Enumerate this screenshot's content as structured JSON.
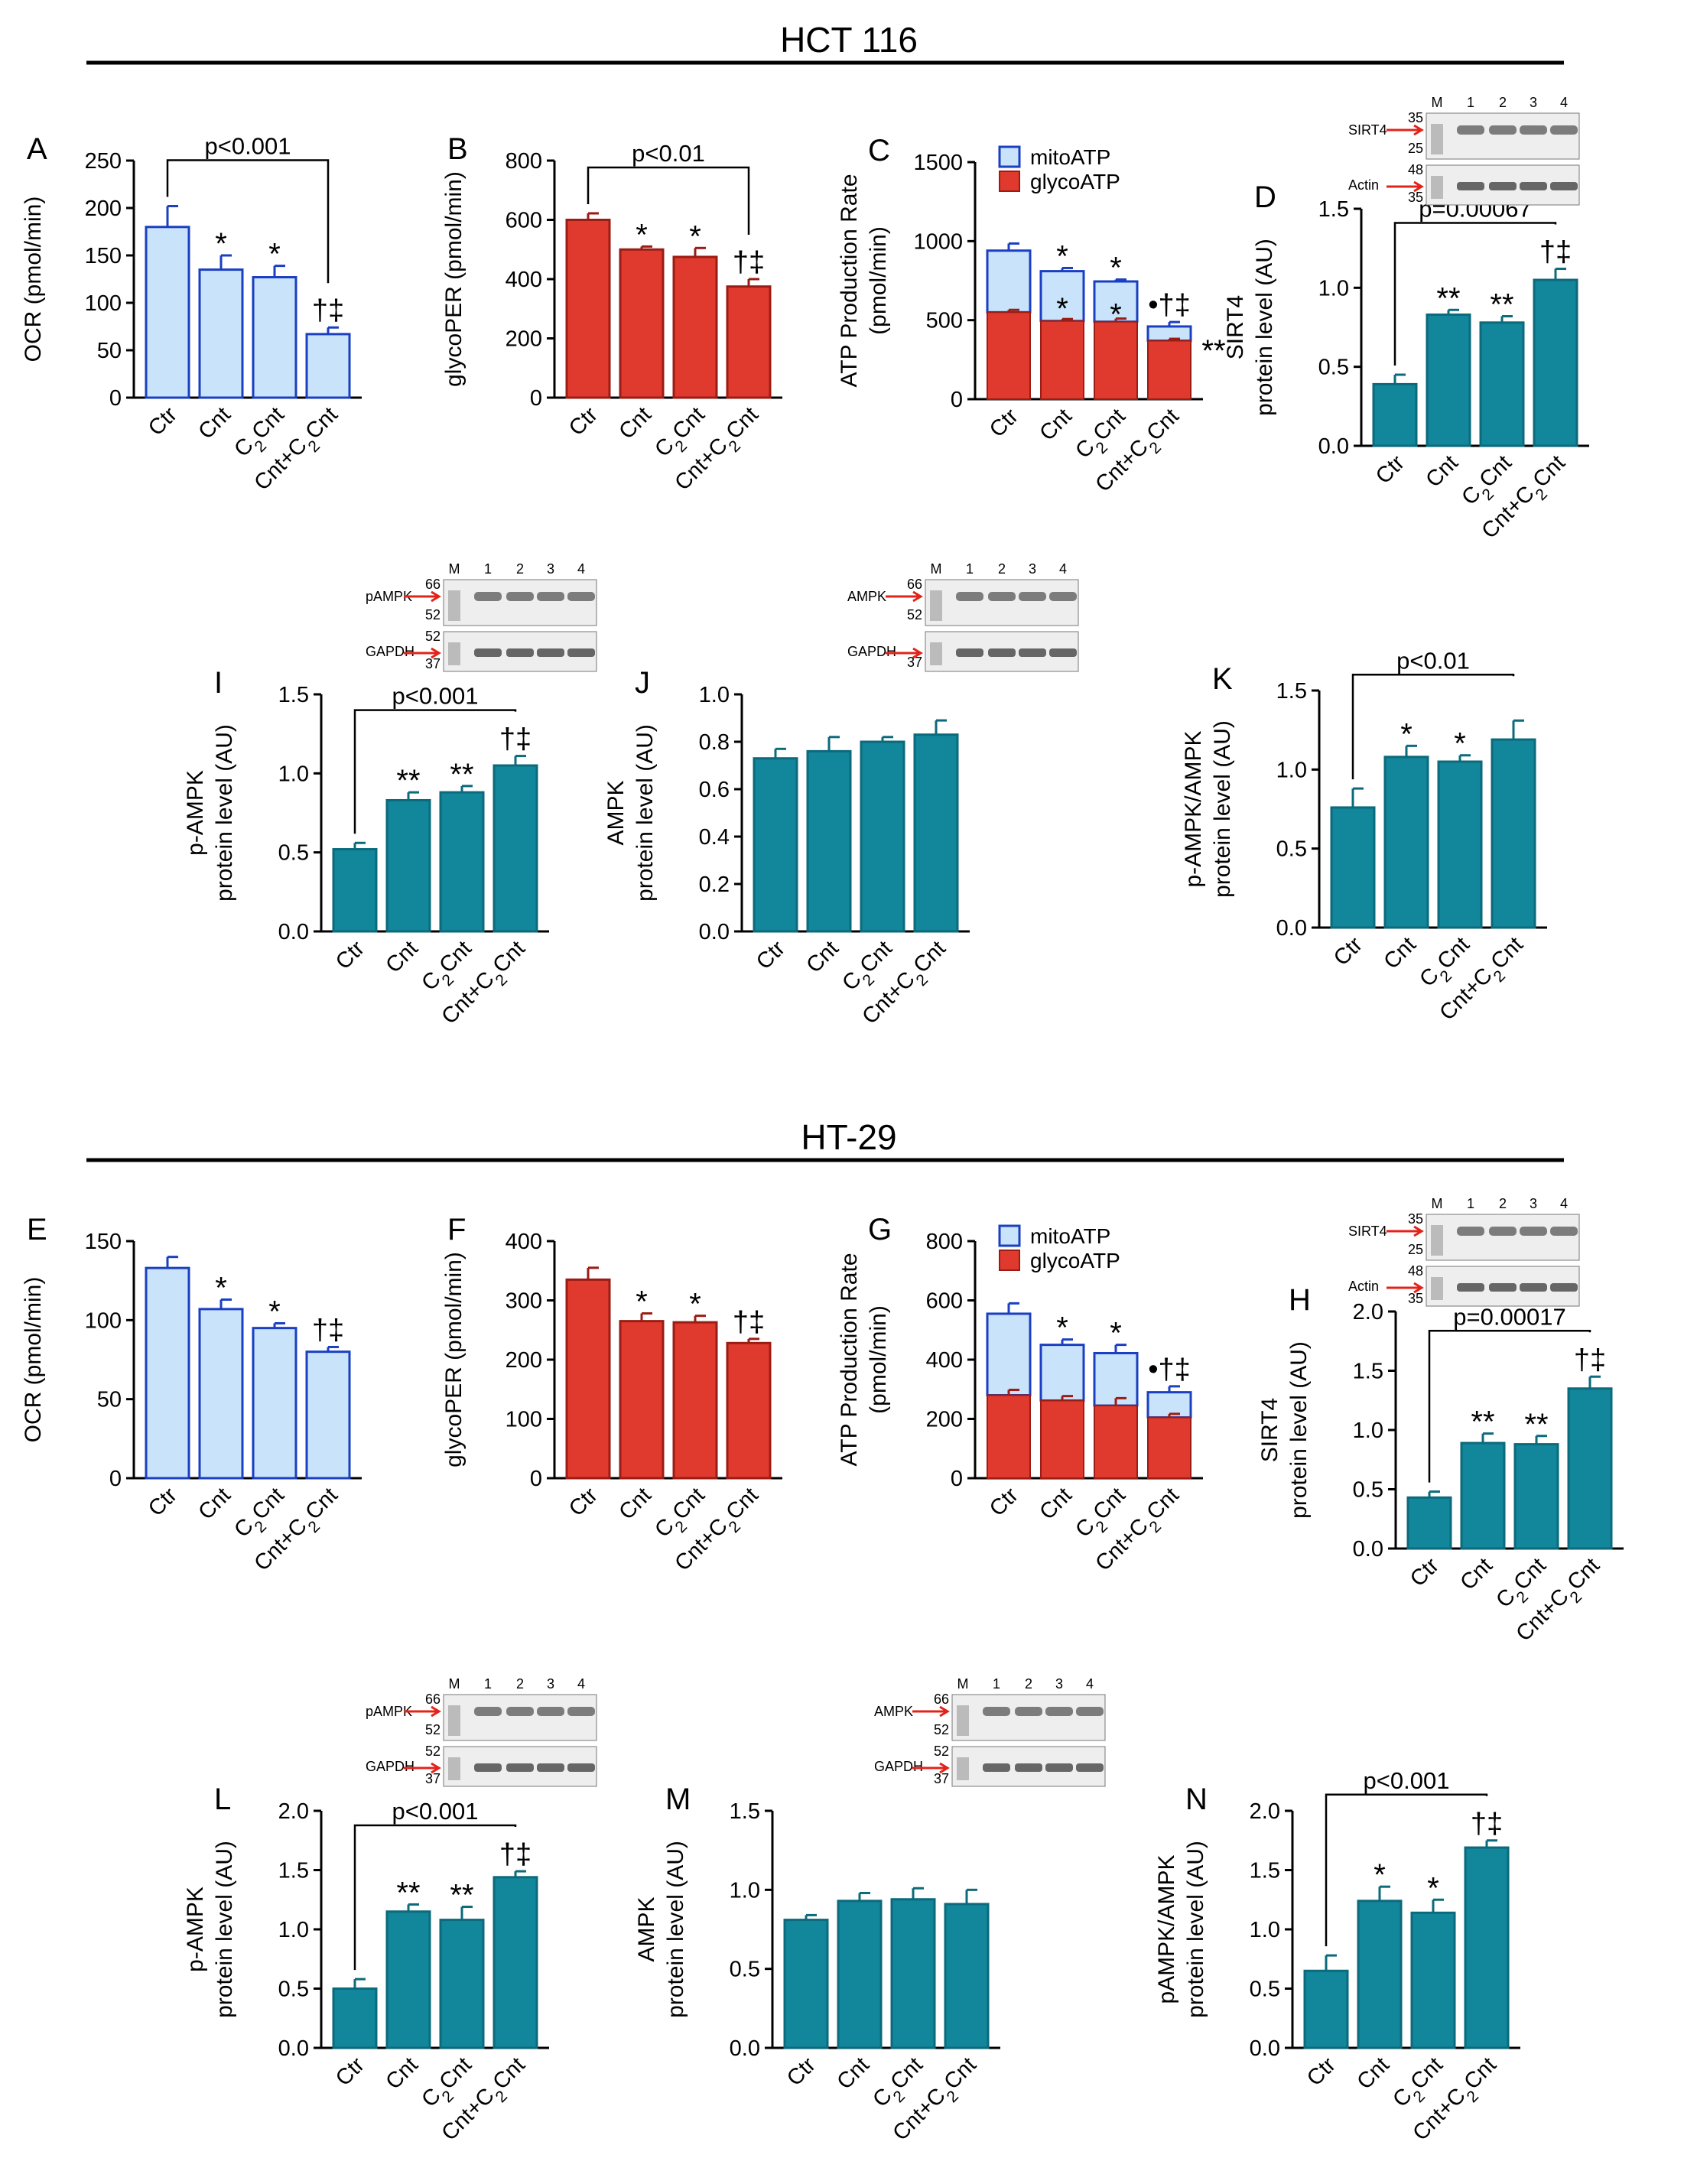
{
  "colors": {
    "light_blue": "#c9e3fa",
    "blue_edge": "#1a3fc2",
    "red": "#e03a2e",
    "red_edge": "#9b1c14",
    "teal": "#12869b",
    "teal_edge": "#0b6a7b",
    "arrow": "#e2231a"
  },
  "sections": [
    {
      "title": "HCT 116"
    },
    {
      "title": "HT-29"
    }
  ],
  "chart_data": [
    {
      "panel": "A",
      "type": "bar",
      "title": "HCT 116 OCR",
      "ylabel": "OCR (pmol/min)",
      "ylim": [
        0,
        250
      ],
      "yticks": [
        0,
        50,
        100,
        150,
        200,
        250
      ],
      "categories": [
        "Ctr",
        "Cnt",
        "C₂Cnt",
        "Cnt+C₂Cnt"
      ],
      "values": [
        180,
        135,
        127,
        67
      ],
      "errors": [
        22,
        15,
        12,
        7
      ],
      "annotations": [
        "",
        "*",
        "*",
        "†‡"
      ],
      "bracket": {
        "text": "p<0.001",
        "from": 0,
        "to": 3
      },
      "style": "lightblue"
    },
    {
      "panel": "B",
      "type": "bar",
      "title": "HCT 116 glycoPER",
      "ylabel": "glycoPER (pmol/min)",
      "ylim": [
        0,
        800
      ],
      "yticks": [
        0,
        200,
        400,
        600,
        800
      ],
      "categories": [
        "Ctr",
        "Cnt",
        "C₂Cnt",
        "Cnt+C₂Cnt"
      ],
      "values": [
        600,
        500,
        475,
        375
      ],
      "errors": [
        22,
        10,
        30,
        25
      ],
      "annotations": [
        "",
        "*",
        "*",
        "†‡"
      ],
      "bracket": {
        "text": "p<0.01",
        "from": 0,
        "to": 3
      },
      "style": "red"
    },
    {
      "panel": "C",
      "type": "bar",
      "stacked": true,
      "title": "HCT 116 ATP Production Rate",
      "ylabel": [
        "ATP Production Rate",
        "(pmol/min)"
      ],
      "ylim": [
        0,
        1500
      ],
      "yticks": [
        0,
        500,
        1000,
        1500
      ],
      "categories": [
        "Ctr",
        "Cnt",
        "C₂Cnt",
        "Cnt+C₂Cnt"
      ],
      "series": [
        {
          "name": "glycoATP",
          "values": [
            550,
            495,
            490,
            370
          ],
          "errors": [
            15,
            12,
            20,
            12
          ]
        },
        {
          "name": "mitoATP",
          "values": [
            390,
            315,
            255,
            90
          ],
          "errors": [
            45,
            20,
            12,
            28
          ]
        }
      ],
      "annotations_top": [
        "",
        "*",
        "*",
        "•†‡"
      ],
      "annotations_mid": [
        "",
        "*",
        "*",
        "**"
      ],
      "legend": [
        "mitoATP",
        "glycoATP"
      ]
    },
    {
      "panel": "D",
      "type": "bar",
      "title": "HCT 116 SIRT4",
      "ylabel": [
        "SIRT4",
        "protein level (AU)"
      ],
      "ylim": [
        0,
        1.5
      ],
      "yticks": [
        "0.0",
        "0.5",
        "1.0",
        "1.5"
      ],
      "categories": [
        "Ctr",
        "Cnt",
        "C₂Cnt",
        "Cnt+C₂Cnt"
      ],
      "values": [
        0.39,
        0.83,
        0.78,
        1.05
      ],
      "errors": [
        0.06,
        0.03,
        0.04,
        0.07
      ],
      "annotations": [
        "",
        "**",
        "**",
        "†‡"
      ],
      "bracket": {
        "text": "p=0.00067",
        "from": 0,
        "to": 3
      },
      "style": "teal"
    },
    {
      "panel": "I",
      "type": "bar",
      "title": "HCT 116 p-AMPK",
      "ylabel": [
        "p-AMPK",
        "protein level (AU)"
      ],
      "ylim": [
        0,
        1.5
      ],
      "yticks": [
        "0.0",
        "0.5",
        "1.0",
        "1.5"
      ],
      "categories": [
        "Ctr",
        "Cnt",
        "C₂Cnt",
        "Cnt+C₂Cnt"
      ],
      "values": [
        0.52,
        0.83,
        0.88,
        1.05
      ],
      "errors": [
        0.04,
        0.05,
        0.04,
        0.06
      ],
      "annotations": [
        "",
        "**",
        "**",
        "†‡"
      ],
      "bracket": {
        "text": "p<0.001",
        "from": 0,
        "to": 3
      },
      "style": "teal"
    },
    {
      "panel": "J",
      "type": "bar",
      "title": "HCT 116 AMPK",
      "ylabel": [
        "AMPK",
        "protein level (AU)"
      ],
      "ylim": [
        0,
        1.0
      ],
      "yticks": [
        "0.0",
        "0.2",
        "0.4",
        "0.6",
        "0.8",
        "1.0"
      ],
      "categories": [
        "Ctr",
        "Cnt",
        "C₂Cnt",
        "Cnt+C₂Cnt"
      ],
      "values": [
        0.73,
        0.76,
        0.8,
        0.83
      ],
      "errors": [
        0.04,
        0.06,
        0.02,
        0.06
      ],
      "annotations": [
        "",
        "",
        "",
        ""
      ],
      "style": "teal"
    },
    {
      "panel": "K",
      "type": "bar",
      "title": "HCT 116 p-AMPK/AMPK",
      "ylabel": [
        "p-AMPK/AMPK",
        "protein level (AU)"
      ],
      "ylim": [
        0,
        1.5
      ],
      "yticks": [
        "0.0",
        "0.5",
        "1.0",
        "1.5"
      ],
      "categories": [
        "Ctr",
        "Cnt",
        "C₂Cnt",
        "Cnt+C₂Cnt"
      ],
      "values": [
        0.76,
        1.08,
        1.05,
        1.19
      ],
      "errors": [
        0.12,
        0.07,
        0.04,
        0.12
      ],
      "annotations": [
        "",
        "*",
        "*",
        ""
      ],
      "bracket": {
        "text": "p<0.01",
        "from": 0,
        "to": 3
      },
      "style": "teal"
    },
    {
      "panel": "E",
      "type": "bar",
      "title": "HT-29 OCR",
      "ylabel": "OCR (pmol/min)",
      "ylim": [
        0,
        150
      ],
      "yticks": [
        0,
        50,
        100,
        150
      ],
      "categories": [
        "Ctr",
        "Cnt",
        "C₂Cnt",
        "Cnt+C₂Cnt"
      ],
      "values": [
        133,
        107,
        95,
        80
      ],
      "errors": [
        7,
        6,
        3,
        3
      ],
      "annotations": [
        "",
        "*",
        "*",
        "†‡"
      ],
      "style": "lightblue"
    },
    {
      "panel": "F",
      "type": "bar",
      "title": "HT-29 glycoPER",
      "ylabel": "glycoPER (pmol/min)",
      "ylim": [
        0,
        400
      ],
      "yticks": [
        0,
        100,
        200,
        300,
        400
      ],
      "categories": [
        "Ctr",
        "Cnt",
        "C₂Cnt",
        "Cnt+C₂Cnt"
      ],
      "values": [
        335,
        265,
        263,
        228
      ],
      "errors": [
        20,
        13,
        11,
        7
      ],
      "annotations": [
        "",
        "*",
        "*",
        "†‡"
      ],
      "style": "red"
    },
    {
      "panel": "G",
      "type": "bar",
      "stacked": true,
      "title": "HT-29 ATP Production Rate",
      "ylabel": [
        "ATP Production Rate",
        "(pmol/min)"
      ],
      "ylim": [
        0,
        800
      ],
      "yticks": [
        0,
        200,
        400,
        600,
        800
      ],
      "categories": [
        "Ctr",
        "Cnt",
        "C₂Cnt",
        "Cnt+C₂Cnt"
      ],
      "series": [
        {
          "name": "glycoATP",
          "values": [
            280,
            262,
            245,
            205
          ],
          "errors": [
            18,
            15,
            25,
            12
          ]
        },
        {
          "name": "mitoATP",
          "values": [
            275,
            188,
            177,
            85
          ],
          "errors": [
            35,
            18,
            28,
            20
          ]
        }
      ],
      "annotations_top": [
        "",
        "*",
        "*",
        "•†‡"
      ],
      "annotations_mid": [
        "",
        "",
        "",
        ""
      ],
      "legend": [
        "mitoATP",
        "glycoATP"
      ]
    },
    {
      "panel": "H",
      "type": "bar",
      "title": "HT-29 SIRT4",
      "ylabel": [
        "SIRT4",
        "protein level (AU)"
      ],
      "ylim": [
        0,
        2.0
      ],
      "yticks": [
        "0.0",
        "0.5",
        "1.0",
        "1.5",
        "2.0"
      ],
      "categories": [
        "Ctr",
        "Cnt",
        "C₂Cnt",
        "Cnt+C₂Cnt"
      ],
      "values": [
        0.43,
        0.89,
        0.88,
        1.35
      ],
      "errors": [
        0.05,
        0.08,
        0.07,
        0.1
      ],
      "annotations": [
        "",
        "**",
        "**",
        "†‡"
      ],
      "bracket": {
        "text": "p=0.00017",
        "from": 0,
        "to": 3
      },
      "style": "teal"
    },
    {
      "panel": "L",
      "type": "bar",
      "title": "HT-29 p-AMPK",
      "ylabel": [
        "p-AMPK",
        "protein level (AU)"
      ],
      "ylim": [
        0,
        2.0
      ],
      "yticks": [
        "0.0",
        "0.5",
        "1.0",
        "1.5",
        "2.0"
      ],
      "categories": [
        "Ctr",
        "Cnt",
        "C₂Cnt",
        "Cnt+C₂Cnt"
      ],
      "values": [
        0.5,
        1.15,
        1.08,
        1.44
      ],
      "errors": [
        0.08,
        0.06,
        0.11,
        0.05
      ],
      "annotations": [
        "",
        "**",
        "**",
        "†‡"
      ],
      "bracket": {
        "text": "p<0.001",
        "from": 0,
        "to": 3
      },
      "style": "teal"
    },
    {
      "panel": "M",
      "type": "bar",
      "title": "HT-29 AMPK",
      "ylabel": [
        "AMPK",
        "protein level (AU)"
      ],
      "ylim": [
        0,
        1.5
      ],
      "yticks": [
        "0.0",
        "0.5",
        "1.0",
        "1.5"
      ],
      "categories": [
        "Ctr",
        "Cnt",
        "C₂Cnt",
        "Cnt+C₂Cnt"
      ],
      "values": [
        0.81,
        0.93,
        0.94,
        0.91
      ],
      "errors": [
        0.03,
        0.05,
        0.07,
        0.09
      ],
      "annotations": [
        "",
        "",
        "",
        ""
      ],
      "style": "teal"
    },
    {
      "panel": "N",
      "type": "bar",
      "title": "HT-29 pAMPK/AMPK",
      "ylabel": [
        "pAMPK/AMPK",
        "protein level (AU)"
      ],
      "ylim": [
        0,
        2.0
      ],
      "yticks": [
        "0.0",
        "0.5",
        "1.0",
        "1.5",
        "2.0"
      ],
      "categories": [
        "Ctr",
        "Cnt",
        "C₂Cnt",
        "Cnt+C₂Cnt"
      ],
      "values": [
        0.65,
        1.24,
        1.14,
        1.69
      ],
      "errors": [
        0.13,
        0.12,
        0.11,
        0.06
      ],
      "annotations": [
        "",
        "*",
        "*",
        "†‡"
      ],
      "bracket": {
        "text": "p<0.001",
        "from": 0,
        "to": 3
      },
      "style": "teal"
    }
  ],
  "blots": [
    {
      "id": "D",
      "top_label": "SIRT4",
      "bottom_label": "Actin",
      "markers_top": [
        "35",
        "25"
      ],
      "markers_bottom": [
        "48",
        "35"
      ],
      "lane_header": [
        "M",
        "1",
        "2",
        "3",
        "4"
      ]
    },
    {
      "id": "I",
      "top_label": "pAMPK",
      "bottom_label": "GAPDH",
      "markers_top": [
        "66",
        "52"
      ],
      "markers_bottom": [
        "52",
        "37"
      ],
      "lane_header": [
        "M",
        "1",
        "2",
        "3",
        "4"
      ]
    },
    {
      "id": "J",
      "top_label": "AMPK",
      "bottom_label": "GAPDH",
      "markers_top": [
        "66",
        "52"
      ],
      "markers_bottom": [
        "37"
      ],
      "lane_header": [
        "M",
        "1",
        "2",
        "3",
        "4"
      ]
    },
    {
      "id": "H",
      "top_label": "SIRT4",
      "bottom_label": "Actin",
      "markers_top": [
        "35",
        "25"
      ],
      "markers_bottom": [
        "48",
        "35"
      ],
      "lane_header": [
        "M",
        "1",
        "2",
        "3",
        "4"
      ]
    },
    {
      "id": "L",
      "top_label": "pAMPK",
      "bottom_label": "GAPDH",
      "markers_top": [
        "66",
        "52"
      ],
      "markers_bottom": [
        "52",
        "37"
      ],
      "lane_header": [
        "M",
        "1",
        "2",
        "3",
        "4"
      ]
    },
    {
      "id": "M",
      "top_label": "AMPK",
      "bottom_label": "GAPDH",
      "markers_top": [
        "66",
        "52"
      ],
      "markers_bottom": [
        "52",
        "37"
      ],
      "lane_header": [
        "M",
        "1",
        "2",
        "3",
        "4"
      ]
    }
  ]
}
